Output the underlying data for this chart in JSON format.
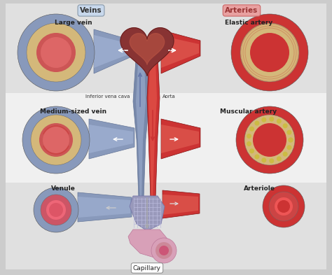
{
  "bg_outer": "#cccccc",
  "bg_inner": "#f0f0f0",
  "bg_stripe_top": "#e0e0e0",
  "bg_stripe_mid": "#f0f0f0",
  "bg_stripe_bot": "#e0e0e0",
  "vein_blue_outer": "#8899bb",
  "vein_blue_mid": "#aabbcc",
  "vein_blue_inner": "#c8d4e4",
  "vein_wall_yellow": "#d4b87a",
  "vein_lumen_dark": "#c06060",
  "vein_lumen_light": "#dd8888",
  "artery_red_outer": "#cc3333",
  "artery_red_mid": "#dd5544",
  "artery_red_inner": "#ee7766",
  "artery_wall_yellow": "#d4b87a",
  "artery_lumen": "#cc3333",
  "capillary_pink": "#e0a0b8",
  "capillary_tube": "#cc6688",
  "cap_net_color": "#9999cc",
  "heart_dark": "#883333",
  "heart_mid": "#aa4444",
  "center_vena_blue": "#7788aa",
  "center_aorta_red": "#cc3333",
  "label_font": 6.5,
  "header_font": 7.5,
  "veins_box_fc": "#c8d8ec",
  "arteries_box_fc": "#e8a0a0",
  "labels": {
    "large_vein": "Large vein",
    "medium_vein": "Medium-sized vein",
    "venule": "Venule",
    "elastic_artery": "Elastic artery",
    "muscular_artery": "Muscular artery",
    "arteriole": "Arteriole",
    "capillary": "Capillary",
    "inferior_vena_cava": "Inferior vena cava",
    "aorta": "Aorta",
    "veins_header": "Veins",
    "arteries_header": "Arteries"
  }
}
